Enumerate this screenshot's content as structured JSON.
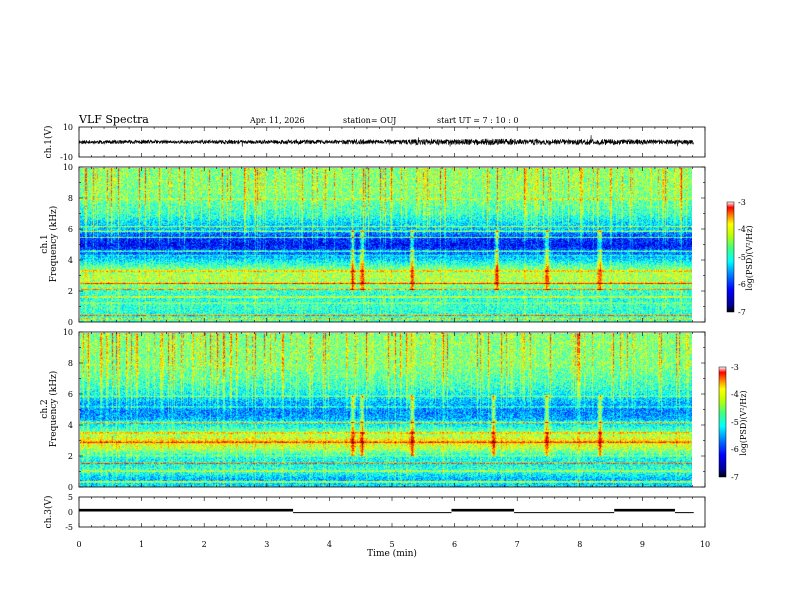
{
  "header": {
    "title": "VLF Spectra",
    "date": "Apr. 11, 2026",
    "station": "station= OUJ",
    "start_ut": "start  UT =   7 : 10 : 0"
  },
  "chart_data": [
    {
      "type": "line",
      "name": "ch1-waveform",
      "ylabel": "ch.1(V)",
      "ylim": [
        -10,
        10
      ],
      "ytick_labels": [
        "10",
        "-10"
      ],
      "xlim": [
        0,
        10
      ],
      "x_extent": [
        0,
        9.82
      ],
      "envelope": {
        "x": [
          0,
          0.5,
          1.0,
          1.5,
          2.0,
          2.5,
          3.0,
          3.5,
          4.0,
          4.5,
          5.0,
          5.5,
          6.0,
          6.5,
          7.0,
          7.5,
          8.0,
          8.5,
          9.0,
          9.5,
          9.82
        ],
        "amplitude": [
          1.2,
          1.3,
          1.4,
          1.1,
          1.3,
          1.4,
          1.2,
          1.6,
          1.3,
          1.7,
          1.5,
          2.0,
          1.8,
          2.2,
          2.0,
          1.9,
          1.8,
          2.0,
          1.7,
          1.6,
          1.5
        ]
      }
    },
    {
      "type": "heatmap",
      "name": "ch1-spectrogram",
      "ylabel_channel": "ch.1",
      "ylabel": "Frequency (kHz)",
      "ylim": [
        0,
        10
      ],
      "ytick_labels": [
        "0",
        "2",
        "4",
        "6",
        "8",
        "10"
      ],
      "xlim": [
        0,
        10
      ],
      "x_extent": [
        0,
        9.82
      ],
      "colorbar": {
        "label": "log(PSD)(V²/Hz)",
        "range": [
          -7,
          -3
        ],
        "tick_labels": [
          "-3",
          "-4",
          "-5",
          "-6",
          "-7"
        ]
      },
      "profile_freq_khz": [
        0,
        0.5,
        1,
        1.5,
        2,
        2.5,
        3,
        3.5,
        4,
        4.5,
        5,
        5.5,
        6,
        6.5,
        7,
        7.5,
        8,
        8.5,
        9,
        9.5,
        10
      ],
      "profile_log_psd": [
        -5.2,
        -5.4,
        -5.3,
        -5.4,
        -5.3,
        -4.9,
        -4.8,
        -5.1,
        -5.6,
        -6.1,
        -6.5,
        -6.3,
        -5.8,
        -5.6,
        -5.3,
        -5.2,
        -5.1,
        -5.0,
        -5.0,
        -5.0,
        -5.0
      ],
      "lines_khz": [
        0.2,
        0.4,
        1.2,
        1.6,
        2.1,
        2.5,
        3.3,
        4.3,
        4.6,
        5.5,
        5.9,
        6.2,
        8.0
      ],
      "events_min": [
        4.35,
        4.5,
        5.3,
        6.65,
        7.45,
        8.3
      ]
    },
    {
      "type": "heatmap",
      "name": "ch2-spectrogram",
      "ylabel_channel": "ch.2",
      "ylabel": "Frequency (kHz)",
      "ylim": [
        0,
        10
      ],
      "ytick_labels": [
        "0",
        "2",
        "4",
        "6",
        "8",
        "10"
      ],
      "xlim": [
        0,
        10
      ],
      "x_extent": [
        0,
        9.82
      ],
      "colorbar": {
        "label": "log(PSD)(V²/Hz)",
        "range": [
          -7,
          -3
        ],
        "tick_labels": [
          "-3",
          "-4",
          "-5",
          "-6",
          "-7"
        ]
      },
      "profile_freq_khz": [
        0,
        0.5,
        1,
        1.5,
        2,
        2.5,
        3,
        3.5,
        4,
        4.5,
        5,
        5.5,
        6,
        6.5,
        7,
        7.5,
        8,
        8.5,
        9,
        9.5,
        10
      ],
      "profile_log_psd": [
        -5.6,
        -5.8,
        -5.3,
        -5.5,
        -5.4,
        -4.8,
        -4.5,
        -5.0,
        -5.5,
        -5.9,
        -6.0,
        -5.8,
        -5.5,
        -5.3,
        -5.2,
        -5.1,
        -5.0,
        -5.0,
        -5.0,
        -5.0,
        -5.0
      ],
      "lines_khz": [
        0.3,
        1.0,
        1.5,
        2.0,
        2.9,
        3.5,
        4.2,
        5.2,
        5.9
      ],
      "events_min": [
        4.35,
        4.5,
        5.3,
        6.6,
        7.45,
        8.3
      ]
    },
    {
      "type": "line",
      "name": "ch3-signal",
      "ylabel": "ch.3(V)",
      "ylim": [
        -5,
        5
      ],
      "ytick_labels": [
        "5",
        "0",
        "-5"
      ],
      "xlim": [
        0,
        10
      ],
      "xlabel": "Time (min)",
      "xtick_labels": [
        "0",
        "1",
        "2",
        "3",
        "4",
        "5",
        "6",
        "7",
        "8",
        "9",
        "10"
      ],
      "high_level_v": 0.6,
      "high_segments_min": [
        [
          0,
          3.42
        ],
        [
          5.95,
          6.95
        ],
        [
          8.55,
          9.52
        ]
      ],
      "x_extent": [
        0,
        9.82
      ]
    }
  ]
}
